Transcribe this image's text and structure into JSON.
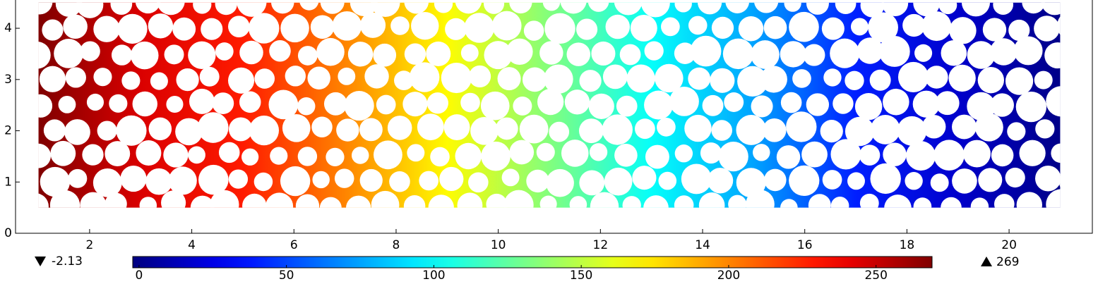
{
  "chart_data": {
    "type": "surface",
    "colormap": "jet",
    "xlim": [
      0.55,
      21.63
    ],
    "xticks": [
      2,
      4,
      6,
      8,
      10,
      12,
      14,
      16,
      18,
      20
    ],
    "ylim": [
      0,
      4.51
    ],
    "yticks": [
      0,
      1,
      2,
      3,
      4
    ],
    "domain": {
      "x": [
        1,
        21
      ],
      "y": [
        0.5,
        4.5
      ]
    },
    "field": {
      "x": [
        1,
        3,
        5,
        7,
        9,
        11,
        13,
        15,
        17,
        19,
        21
      ],
      "values": [
        269,
        245,
        228,
        200,
        168,
        134,
        101,
        75,
        40,
        18,
        0
      ]
    },
    "clim": [
      -2.13,
      269
    ],
    "cticks": [
      0,
      50,
      100,
      150,
      200,
      250
    ]
  }
}
